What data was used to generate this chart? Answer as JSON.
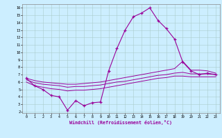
{
  "xlabel": "Windchill (Refroidissement éolien,°C)",
  "bg_color": "#cceeff",
  "line_color": "#990099",
  "grid_color": "#aacccc",
  "xlim": [
    -0.5,
    23.5
  ],
  "ylim": [
    1.8,
    16.5
  ],
  "xticks": [
    0,
    1,
    2,
    3,
    4,
    5,
    6,
    7,
    8,
    9,
    10,
    11,
    12,
    13,
    14,
    15,
    16,
    17,
    18,
    19,
    20,
    21,
    22,
    23
  ],
  "yticks": [
    2,
    3,
    4,
    5,
    6,
    7,
    8,
    9,
    10,
    11,
    12,
    13,
    14,
    15,
    16
  ],
  "main_x": [
    0,
    1,
    2,
    3,
    4,
    5,
    6,
    7,
    8,
    9,
    10,
    11,
    12,
    13,
    14,
    15,
    16,
    17,
    18,
    19,
    20,
    21,
    22,
    23
  ],
  "main_y": [
    6.5,
    5.5,
    5.0,
    4.2,
    4.0,
    2.2,
    3.5,
    2.8,
    3.2,
    3.3,
    7.5,
    10.5,
    13.0,
    14.8,
    15.3,
    16.0,
    14.3,
    13.2,
    11.8,
    8.7,
    7.5,
    7.0,
    7.2,
    7.0
  ],
  "upper_x": [
    0,
    1,
    2,
    3,
    4,
    5,
    6,
    7,
    8,
    9,
    10,
    11,
    12,
    13,
    14,
    15,
    16,
    17,
    18,
    19,
    20,
    21,
    22,
    23
  ],
  "upper_y": [
    6.5,
    6.2,
    6.0,
    5.9,
    5.8,
    5.7,
    5.7,
    5.8,
    5.9,
    6.0,
    6.2,
    6.4,
    6.6,
    6.8,
    7.0,
    7.2,
    7.4,
    7.6,
    7.8,
    8.8,
    7.6,
    7.6,
    7.5,
    7.2
  ],
  "mid_x": [
    0,
    1,
    2,
    3,
    4,
    5,
    6,
    7,
    8,
    9,
    10,
    11,
    12,
    13,
    14,
    15,
    16,
    17,
    18,
    19,
    20,
    21,
    22,
    23
  ],
  "mid_y": [
    6.3,
    5.9,
    5.7,
    5.6,
    5.5,
    5.3,
    5.4,
    5.4,
    5.5,
    5.6,
    5.8,
    6.0,
    6.1,
    6.3,
    6.5,
    6.7,
    6.9,
    7.0,
    7.2,
    7.3,
    7.1,
    7.1,
    7.1,
    7.0
  ],
  "lower_x": [
    0,
    1,
    2,
    3,
    4,
    5,
    6,
    7,
    8,
    9,
    10,
    11,
    12,
    13,
    14,
    15,
    16,
    17,
    18,
    19,
    20,
    21,
    22,
    23
  ],
  "lower_y": [
    6.0,
    5.5,
    5.3,
    5.1,
    5.0,
    4.8,
    4.9,
    4.9,
    5.0,
    5.1,
    5.3,
    5.5,
    5.7,
    5.9,
    6.1,
    6.3,
    6.5,
    6.6,
    6.8,
    6.8,
    6.7,
    6.7,
    6.7,
    6.7
  ]
}
